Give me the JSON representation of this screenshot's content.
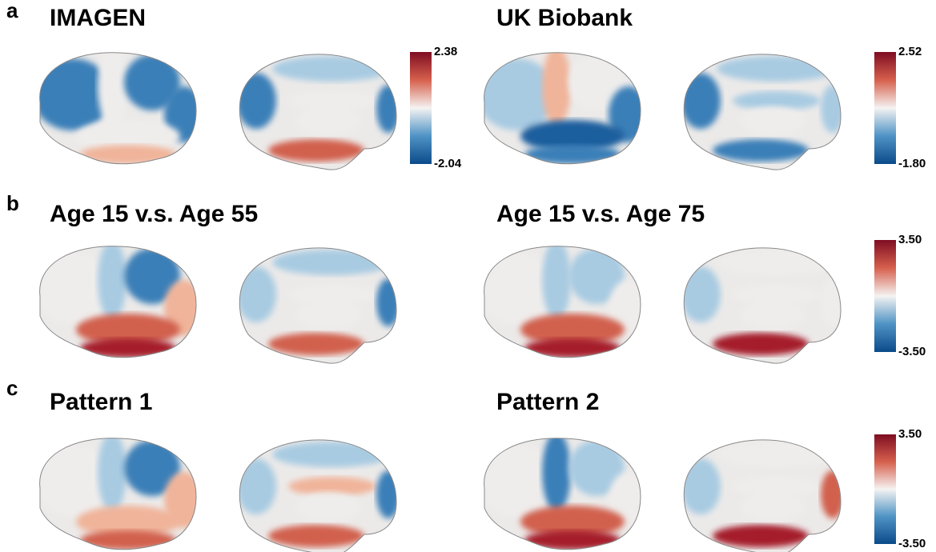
{
  "panels": [
    {
      "label": "a",
      "titles": [
        "IMAGEN",
        "UK Biobank"
      ],
      "colorbars": [
        {
          "max": "2.38",
          "min": "-2.04"
        },
        {
          "max": "2.52",
          "min": "-1.80"
        }
      ]
    },
    {
      "label": "b",
      "titles": [
        "Age 15 v.s. Age 55",
        "Age 15 v.s. Age 75"
      ],
      "colorbars": [
        {
          "max": "3.50",
          "min": "-3.50"
        }
      ]
    },
    {
      "label": "c",
      "titles": [
        "Pattern 1",
        "Pattern 2"
      ],
      "colorbars": [
        {
          "max": "3.50",
          "min": "-3.50"
        }
      ]
    }
  ]
}
